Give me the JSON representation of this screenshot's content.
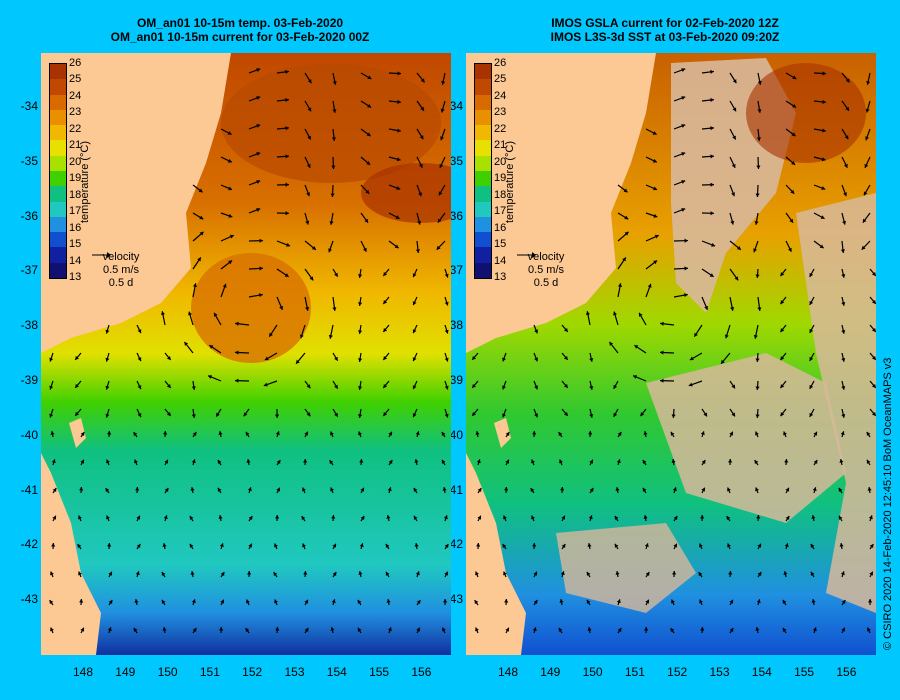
{
  "panels": [
    {
      "id": "left",
      "title_line1": "OM_an01 10-15m temp. 03-Feb-2020",
      "title_line2": "OM_an01 10-15m current for 03-Feb-2020 00Z"
    },
    {
      "id": "right",
      "title_line1": "IMOS GSLA current for 02-Feb-2020 12Z",
      "title_line2": "IMOS L3S-3d SST at 03-Feb-2020 09:20Z"
    }
  ],
  "colorbar": {
    "label": "temperature (°C)",
    "ticks": [
      "26",
      "25",
      "24",
      "23",
      "22",
      "21",
      "20",
      "19",
      "18",
      "17",
      "16",
      "15",
      "14",
      "13"
    ],
    "colors": [
      "#a83200",
      "#c04800",
      "#d86a00",
      "#e89000",
      "#f0b800",
      "#e8e000",
      "#a8e000",
      "#40d000",
      "#10c080",
      "#20c8c0",
      "#2090e0",
      "#1050d0",
      "#1020a0",
      "#101070"
    ]
  },
  "velocity_legend": {
    "label": "velocity",
    "speed": "0.5 m/s",
    "duration": "0.5 d"
  },
  "axes": {
    "lat_ticks": [
      "-34",
      "-35",
      "-36",
      "-37",
      "-38",
      "-39",
      "-40",
      "-41",
      "-42",
      "-43"
    ],
    "lon_ticks": [
      "148",
      "149",
      "150",
      "151",
      "152",
      "153",
      "154",
      "155",
      "156"
    ]
  },
  "footer": "© CSIRO 2020   14-Feb-2020 12:45:10 BoM OceanMAPS v3",
  "colors": {
    "background": "#00c8ff",
    "land": "#fcc894",
    "missing": "#d8b89a"
  }
}
